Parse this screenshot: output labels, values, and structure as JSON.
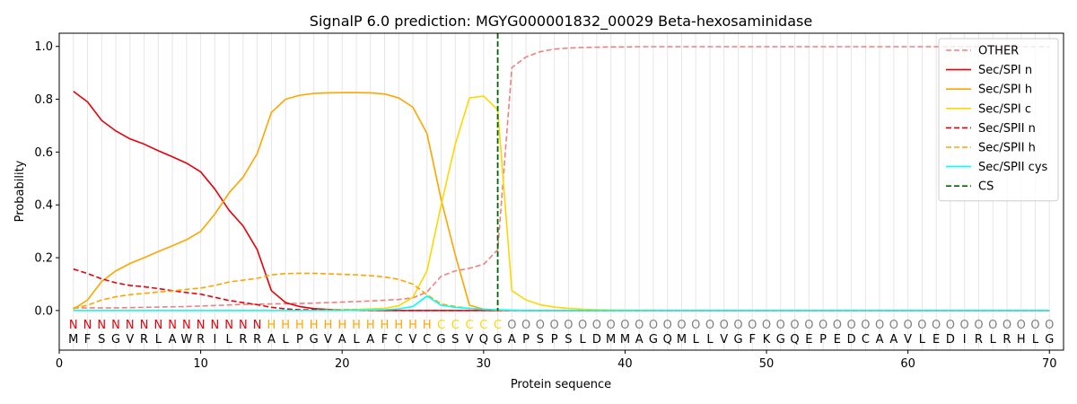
{
  "chart_data": {
    "type": "line",
    "title": "SignalP 6.0 prediction: MGYG000001832_00029 Beta-hexosaminidase",
    "xlabel": "Protein sequence",
    "ylabel": "Probability",
    "xlim": [
      0,
      71
    ],
    "ylim": [
      -0.15,
      1.05
    ],
    "xticks": [
      0,
      10,
      20,
      30,
      40,
      50,
      60,
      70
    ],
    "yticks": [
      0.0,
      0.2,
      0.4,
      0.6,
      0.8,
      1.0
    ],
    "ytick_labels": [
      "0.0",
      "0.2",
      "0.4",
      "0.6",
      "0.8",
      "1.0"
    ],
    "legend_position": "top-right",
    "grid": "vertical lines at each residue",
    "cleavage_site": {
      "label": "CS",
      "x": 31,
      "color": "#006400"
    },
    "sequence": [
      "M",
      "F",
      "S",
      "G",
      "V",
      "R",
      "L",
      "A",
      "W",
      "R",
      "I",
      "L",
      "R",
      "R",
      "A",
      "L",
      "P",
      "G",
      "V",
      "A",
      "L",
      "A",
      "F",
      "C",
      "V",
      "C",
      "G",
      "S",
      "V",
      "Q",
      "G",
      "A",
      "P",
      "S",
      "P",
      "S",
      "L",
      "D",
      "M",
      "M",
      "A",
      "G",
      "Q",
      "M",
      "L",
      "L",
      "V",
      "G",
      "F",
      "K",
      "G",
      "Q",
      "E",
      "P",
      "E",
      "D",
      "C",
      "A",
      "A",
      "V",
      "L",
      "E",
      "D",
      "I",
      "R",
      "L",
      "R",
      "H",
      "L",
      "G"
    ],
    "labels": [
      "N",
      "N",
      "N",
      "N",
      "N",
      "N",
      "N",
      "N",
      "N",
      "N",
      "N",
      "N",
      "N",
      "N",
      "H",
      "H",
      "H",
      "H",
      "H",
      "H",
      "H",
      "H",
      "H",
      "H",
      "H",
      "H",
      "C",
      "C",
      "C",
      "C",
      "C",
      "O",
      "O",
      "O",
      "O",
      "O",
      "O",
      "O",
      "O",
      "O",
      "O",
      "O",
      "O",
      "O",
      "O",
      "O",
      "O",
      "O",
      "O",
      "O",
      "O",
      "O",
      "O",
      "O",
      "O",
      "O",
      "O",
      "O",
      "O",
      "O",
      "O",
      "O",
      "O",
      "O",
      "O",
      "O",
      "O",
      "O",
      "O",
      "O"
    ],
    "label_colors": {
      "N": "#e8000b",
      "H": "#ffa500",
      "C": "#ffd700",
      "O": "#808080"
    },
    "series": [
      {
        "name": "OTHER",
        "color": "#f08080",
        "dash": true,
        "values": [
          0.01,
          0.01,
          0.01,
          0.01,
          0.011,
          0.012,
          0.013,
          0.014,
          0.015,
          0.017,
          0.019,
          0.021,
          0.023,
          0.024,
          0.025,
          0.026,
          0.027,
          0.028,
          0.03,
          0.032,
          0.034,
          0.036,
          0.039,
          0.042,
          0.048,
          0.07,
          0.13,
          0.15,
          0.16,
          0.175,
          0.23,
          0.92,
          0.96,
          0.98,
          0.99,
          0.994,
          0.996,
          0.997,
          0.998,
          0.998,
          0.999,
          0.999,
          0.999,
          0.999,
          0.999,
          0.999,
          0.999,
          0.999,
          0.999,
          0.999,
          0.999,
          0.999,
          0.999,
          0.999,
          0.999,
          0.999,
          0.999,
          0.999,
          0.999,
          0.999,
          0.999,
          0.999,
          0.999,
          0.999,
          0.999,
          0.999,
          0.999,
          0.999,
          0.999,
          0.999
        ]
      },
      {
        "name": "Sec/SPI n",
        "color": "#e8000b",
        "dash": false,
        "values": [
          0.83,
          0.79,
          0.72,
          0.68,
          0.65,
          0.63,
          0.605,
          0.582,
          0.558,
          0.525,
          0.46,
          0.38,
          0.32,
          0.23,
          0.075,
          0.03,
          0.015,
          0.007,
          0.004,
          0.002,
          0.001,
          0.001,
          0.0,
          0.0,
          0.0,
          0.0,
          0.0,
          0.0,
          0.0,
          0.0,
          0.0,
          0.0,
          0.0,
          0.0,
          0.0,
          0.0,
          0.0,
          0.0,
          0.0,
          0.0,
          0.0,
          0.0,
          0.0,
          0.0,
          0.0,
          0.0,
          0.0,
          0.0,
          0.0,
          0.0,
          0.0,
          0.0,
          0.0,
          0.0,
          0.0,
          0.0,
          0.0,
          0.0,
          0.0,
          0.0,
          0.0,
          0.0,
          0.0,
          0.0,
          0.0,
          0.0,
          0.0,
          0.0,
          0.0,
          0.0
        ]
      },
      {
        "name": "Sec/SPI h",
        "color": "#ffa500",
        "dash": false,
        "values": [
          0.005,
          0.04,
          0.11,
          0.15,
          0.178,
          0.2,
          0.223,
          0.245,
          0.268,
          0.3,
          0.365,
          0.445,
          0.505,
          0.595,
          0.75,
          0.8,
          0.815,
          0.822,
          0.824,
          0.825,
          0.825,
          0.824,
          0.82,
          0.805,
          0.77,
          0.67,
          0.42,
          0.21,
          0.02,
          0.005,
          0.002,
          0.001,
          0.0,
          0.0,
          0.0,
          0.0,
          0.0,
          0.0,
          0.0,
          0.0,
          0.0,
          0.0,
          0.0,
          0.0,
          0.0,
          0.0,
          0.0,
          0.0,
          0.0,
          0.0,
          0.0,
          0.0,
          0.0,
          0.0,
          0.0,
          0.0,
          0.0,
          0.0,
          0.0,
          0.0,
          0.0,
          0.0,
          0.0,
          0.0,
          0.0,
          0.0,
          0.0,
          0.0,
          0.0,
          0.0
        ]
      },
      {
        "name": "Sec/SPI c",
        "color": "#ffd700",
        "dash": false,
        "values": [
          0.0,
          0.0,
          0.0,
          0.0,
          0.0,
          0.0,
          0.0,
          0.0,
          0.0,
          0.0,
          0.0,
          0.0,
          0.0,
          0.0,
          0.0,
          0.0,
          0.0,
          0.001,
          0.002,
          0.003,
          0.004,
          0.006,
          0.008,
          0.018,
          0.05,
          0.15,
          0.4,
          0.63,
          0.805,
          0.812,
          0.76,
          0.075,
          0.04,
          0.022,
          0.013,
          0.008,
          0.005,
          0.003,
          0.002,
          0.001,
          0.001,
          0.001,
          0.0,
          0.0,
          0.0,
          0.0,
          0.0,
          0.0,
          0.0,
          0.0,
          0.0,
          0.0,
          0.0,
          0.0,
          0.0,
          0.0,
          0.0,
          0.0,
          0.0,
          0.0,
          0.0,
          0.0,
          0.0,
          0.0,
          0.0,
          0.0,
          0.0,
          0.0,
          0.0,
          0.0
        ]
      },
      {
        "name": "Sec/SPII n",
        "color": "#e8000b",
        "dash": true,
        "values": [
          0.157,
          0.14,
          0.12,
          0.105,
          0.095,
          0.09,
          0.083,
          0.075,
          0.068,
          0.062,
          0.05,
          0.038,
          0.03,
          0.022,
          0.012,
          0.006,
          0.003,
          0.002,
          0.001,
          0.001,
          0.001,
          0.0,
          0.0,
          0.0,
          0.0,
          0.0,
          0.0,
          0.0,
          0.0,
          0.0,
          0.0,
          0.0,
          0.0,
          0.0,
          0.0,
          0.0,
          0.0,
          0.0,
          0.0,
          0.0,
          0.0,
          0.0,
          0.0,
          0.0,
          0.0,
          0.0,
          0.0,
          0.0,
          0.0,
          0.0,
          0.0,
          0.0,
          0.0,
          0.0,
          0.0,
          0.0,
          0.0,
          0.0,
          0.0,
          0.0,
          0.0,
          0.0,
          0.0,
          0.0,
          0.0,
          0.0,
          0.0,
          0.0,
          0.0,
          0.0
        ]
      },
      {
        "name": "Sec/SPII h",
        "color": "#ffa500",
        "dash": true,
        "values": [
          0.01,
          0.02,
          0.04,
          0.052,
          0.06,
          0.065,
          0.07,
          0.074,
          0.08,
          0.085,
          0.095,
          0.108,
          0.115,
          0.122,
          0.135,
          0.14,
          0.141,
          0.141,
          0.139,
          0.137,
          0.135,
          0.132,
          0.127,
          0.118,
          0.1,
          0.06,
          0.025,
          0.015,
          0.008,
          0.004,
          0.002,
          0.001,
          0.0,
          0.0,
          0.0,
          0.0,
          0.0,
          0.0,
          0.0,
          0.0,
          0.0,
          0.0,
          0.0,
          0.0,
          0.0,
          0.0,
          0.0,
          0.0,
          0.0,
          0.0,
          0.0,
          0.0,
          0.0,
          0.0,
          0.0,
          0.0,
          0.0,
          0.0,
          0.0,
          0.0,
          0.0,
          0.0,
          0.0,
          0.0,
          0.0,
          0.0,
          0.0,
          0.0,
          0.0,
          0.0
        ]
      },
      {
        "name": "Sec/SPII cys",
        "color": "#00ffff",
        "dash": false,
        "values": [
          0.0,
          0.0,
          0.0,
          0.0,
          0.0,
          0.0,
          0.0,
          0.0,
          0.0,
          0.0,
          0.0,
          0.0,
          0.0,
          0.0,
          0.0,
          0.0,
          0.0,
          0.0,
          0.0,
          0.0,
          0.001,
          0.002,
          0.003,
          0.006,
          0.015,
          0.055,
          0.02,
          0.012,
          0.008,
          0.005,
          0.003,
          0.001,
          0.0,
          0.0,
          0.0,
          0.0,
          0.0,
          0.0,
          0.0,
          0.0,
          0.0,
          0.0,
          0.0,
          0.0,
          0.0,
          0.0,
          0.0,
          0.0,
          0.0,
          0.0,
          0.0,
          0.0,
          0.0,
          0.0,
          0.0,
          0.0,
          0.0,
          0.0,
          0.0,
          0.0,
          0.0,
          0.0,
          0.0,
          0.0,
          0.0,
          0.0,
          0.0,
          0.0,
          0.0,
          0.0
        ]
      }
    ]
  }
}
